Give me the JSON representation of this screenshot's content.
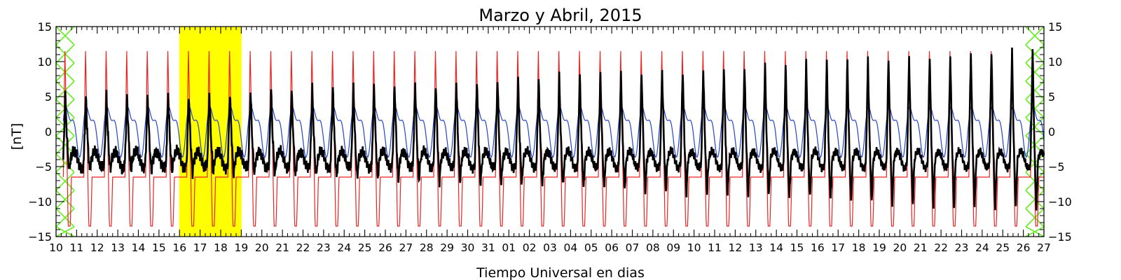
{
  "chart_data": {
    "type": "line",
    "title": "Marzo y Abril, 2015",
    "xlabel": "Tiempo Universal en dias",
    "ylabel": "[nT]",
    "xlim": [
      0,
      18
    ],
    "ylim": [
      -15,
      15
    ],
    "yticks": [
      -15,
      -10,
      -5,
      0,
      5,
      10,
      15
    ],
    "xtick_labels": [
      "10",
      "11",
      "12",
      "13",
      "14",
      "15",
      "16",
      "17",
      "18",
      "19",
      "20",
      "21",
      "22",
      "23",
      "24",
      "25",
      "26",
      "27",
      "28",
      "29",
      "30",
      "31",
      "01",
      "02",
      "03",
      "04",
      "05",
      "06",
      "07",
      "08",
      "09",
      "10",
      "11",
      "12",
      "13",
      "14",
      "15",
      "16",
      "17",
      "18",
      "19",
      "20",
      "21",
      "22",
      "23",
      "24",
      "25",
      "26",
      "27"
    ],
    "highlight": {
      "from_label": "16",
      "to_label": "19",
      "color": "#ffff00"
    },
    "missing_data_markers": {
      "color": "#66ee22",
      "at_labels": [
        "10",
        "27"
      ]
    },
    "series": [
      {
        "color": "#ee2222",
        "role": "reference diurnal curve",
        "max": 12,
        "min": -13.5
      },
      {
        "color": "#2244cc",
        "role": "secondary reference curve",
        "max": 4.5,
        "min": -5
      },
      {
        "color": "#000000",
        "role": "observed data",
        "start_amplitude": 5,
        "end_amplitude": 12
      }
    ]
  }
}
